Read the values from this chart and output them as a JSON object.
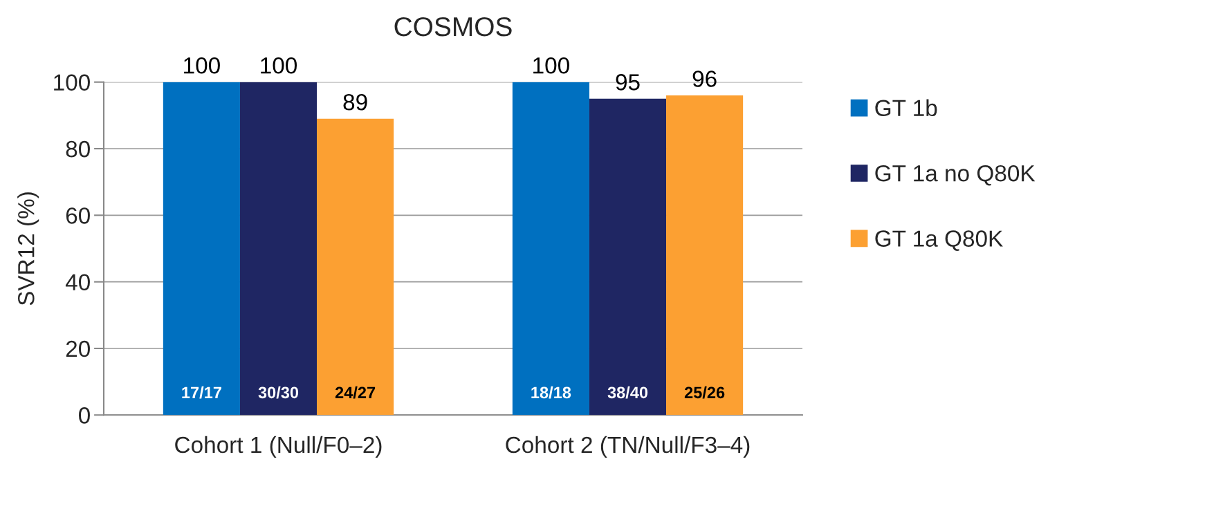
{
  "chart_data": {
    "type": "bar",
    "title": "COSMOS",
    "ylabel": "SVR12 (%)",
    "categories": [
      "Cohort 1 (Null/F0–2)",
      "Cohort 2 (TN/Null/F3–4)"
    ],
    "series": [
      {
        "name": "GT 1b",
        "color": "#0070c0",
        "values": [
          100,
          100
        ]
      },
      {
        "name": "GT 1a no Q80K",
        "color": "#1f2663",
        "values": [
          100,
          95
        ]
      },
      {
        "name": "GT 1a Q80K",
        "color": "#fca032",
        "values": [
          89,
          96
        ]
      }
    ],
    "ylim": [
      0,
      100
    ],
    "yticks": [
      0,
      20,
      40,
      60,
      80,
      100
    ],
    "grid": "y",
    "legend": "right",
    "data_labels": true,
    "annotations": [
      "17/17",
      "30/30",
      "24/27",
      "18/18",
      "38/40",
      "25/26"
    ]
  }
}
